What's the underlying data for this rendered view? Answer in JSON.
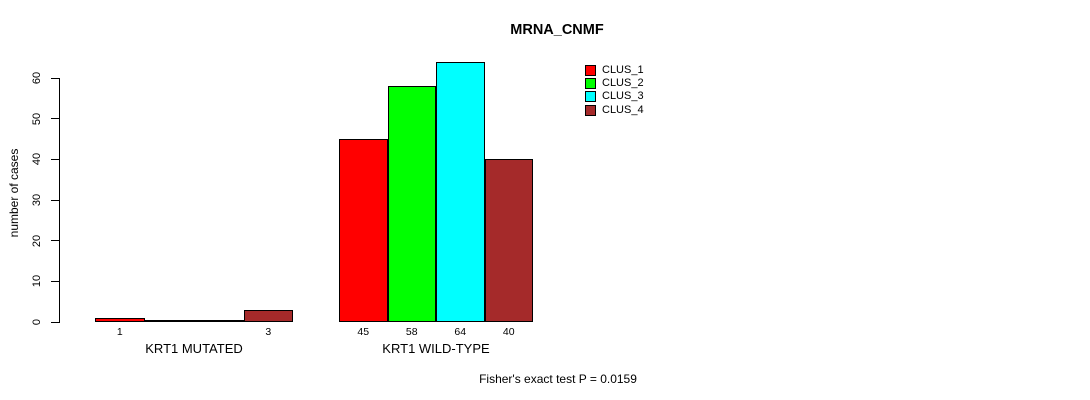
{
  "title": "MRNA_CNMF",
  "footer": "Fisher's exact test P = 0.0159",
  "chart_data": {
    "type": "bar",
    "title": "MRNA_CNMF",
    "ylabel": "number of cases",
    "xlabel": "",
    "ylim": [
      0,
      60
    ],
    "yticks": [
      0,
      10,
      20,
      30,
      40,
      50,
      60
    ],
    "grid": false,
    "legend_position": "top-right",
    "categories": [
      "KRT1 MUTATED",
      "KRT1 WILD-TYPE"
    ],
    "series": [
      {
        "name": "CLUS_1",
        "color": "#ff0000",
        "values": [
          1,
          45
        ]
      },
      {
        "name": "CLUS_2",
        "color": "#00ff00",
        "values": [
          0,
          58
        ]
      },
      {
        "name": "CLUS_3",
        "color": "#00ffff",
        "values": [
          0,
          64
        ]
      },
      {
        "name": "CLUS_4",
        "color": "#a52a2a",
        "values": [
          3,
          40
        ]
      }
    ],
    "bar_value_labels": {
      "KRT1 MUTATED": [
        "1",
        "",
        "",
        "3"
      ],
      "KRT1 WILD-TYPE": [
        "45",
        "58",
        "64",
        "40"
      ]
    },
    "annotation": "Fisher's exact test P = 0.0159",
    "bar_border_color": "#000000",
    "axis_color": "#000000"
  }
}
